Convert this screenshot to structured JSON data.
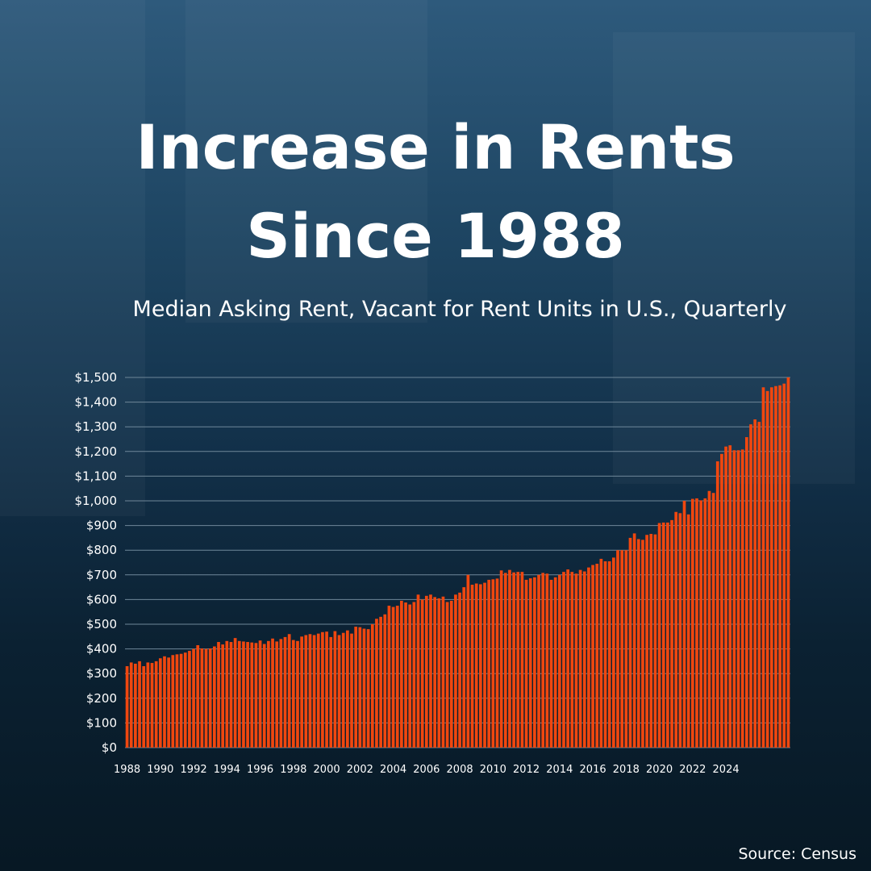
{
  "title_line1": "Increase in Rents",
  "title_line2": "Since 1988",
  "subtitle": "Median Asking Rent, Vacant for Rent Units in U.S., Quarterly",
  "source": "Source: Census",
  "colors": {
    "bar": "#f0470f",
    "gridline": "#6f8799",
    "text": "#ffffff"
  },
  "chart_data": {
    "type": "bar",
    "title": "Median Asking Rent, Vacant for Rent Units in U.S., Quarterly",
    "xlabel": "",
    "ylabel": "",
    "ylim": [
      0,
      1500
    ],
    "y_ticks": [
      "$0",
      "$100",
      "$200",
      "$300",
      "$400",
      "$500",
      "$600",
      "$700",
      "$800",
      "$900",
      "$1,000",
      "$1,100",
      "$1,200",
      "$1,300",
      "$1,400",
      "$1,500"
    ],
    "y_tick_values": [
      0,
      100,
      200,
      300,
      400,
      500,
      600,
      700,
      800,
      900,
      1000,
      1100,
      1200,
      1300,
      1400,
      1500
    ],
    "x_tick_labels": [
      "1988",
      "1990",
      "1992",
      "1994",
      "1996",
      "1998",
      "2000",
      "2002",
      "2004",
      "2006",
      "2008",
      "2010",
      "2012",
      "2014",
      "2016",
      "2018",
      "2020",
      "2022",
      "2024"
    ],
    "grid": true,
    "legend": "none",
    "series": [
      {
        "values": [
          330,
          345,
          340,
          350,
          330,
          345,
          343,
          350,
          362,
          370,
          365,
          375,
          378,
          380,
          385,
          392,
          400,
          415,
          402,
          400,
          402,
          410,
          428,
          418,
          432,
          428,
          444,
          432,
          430,
          428,
          426,
          424,
          434,
          420,
          432,
          442,
          430,
          440,
          448,
          460,
          436,
          432,
          450,
          456,
          460,
          456,
          462,
          468,
          470,
          448,
          472,
          456,
          465,
          475,
          462,
          490,
          488,
          482,
          480,
          500,
          522,
          530,
          540,
          575,
          570,
          575,
          595,
          588,
          580,
          590,
          620,
          600,
          615,
          620,
          610,
          605,
          612,
          590,
          595,
          620,
          628,
          650,
          700,
          660,
          665,
          662,
          668,
          680,
          682,
          685,
          718,
          708,
          720,
          710,
          712,
          712,
          680,
          686,
          690,
          700,
          708,
          705,
          680,
          690,
          700,
          712,
          722,
          712,
          705,
          720,
          714,
          730,
          740,
          745,
          765,
          755,
          755,
          770,
          800,
          800,
          800,
          850,
          868,
          845,
          842,
          862,
          866,
          864,
          910,
          912,
          912,
          922,
          955,
          950,
          1000,
          945,
          1008,
          1010,
          1002,
          1010,
          1040,
          1032,
          1160,
          1190,
          1220,
          1225,
          1205,
          1205,
          1208,
          1258,
          1310,
          1330,
          1320,
          1460,
          1445,
          1460,
          1465,
          1468,
          1475,
          1500
        ]
      }
    ]
  }
}
